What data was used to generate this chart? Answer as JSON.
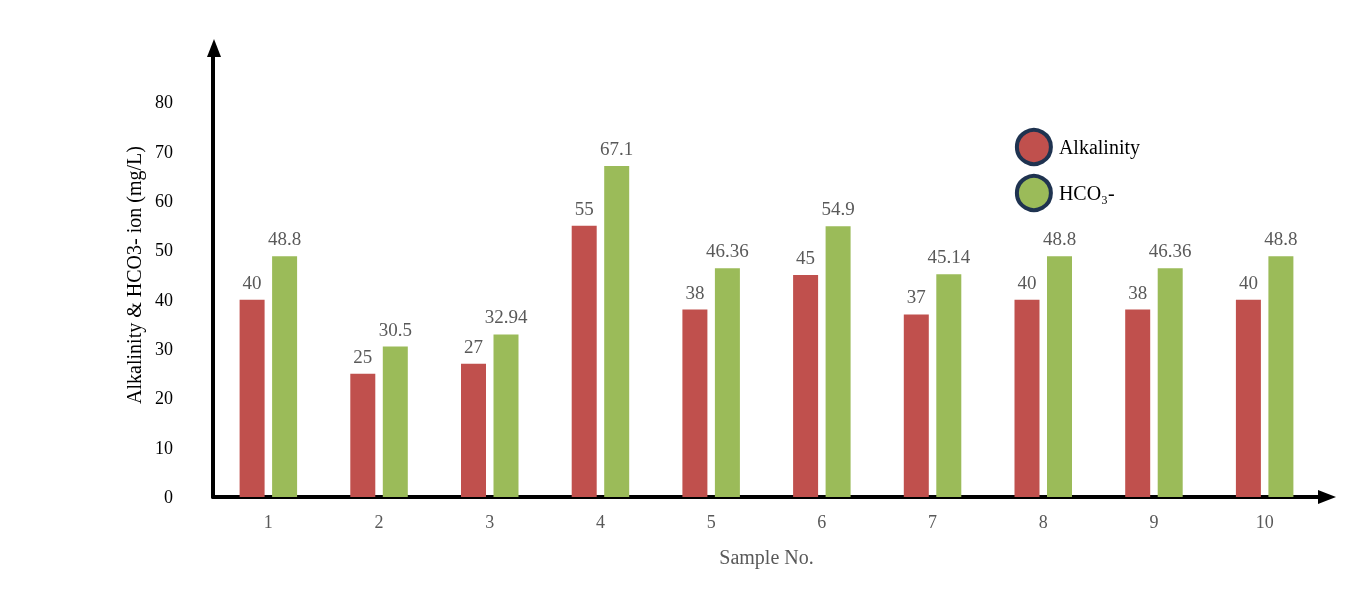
{
  "chart_data": {
    "type": "bar",
    "xlabel": "Sample No.",
    "ylabel": "Alkalinity & HCO3- ion (mg/L)",
    "categories": [
      "1",
      "2",
      "3",
      "4",
      "5",
      "6",
      "7",
      "8",
      "9",
      "10"
    ],
    "series": [
      {
        "name": "Alkalinity",
        "color": "#c0504d",
        "values": [
          40,
          25,
          27,
          55,
          38,
          45,
          37,
          40,
          38,
          40
        ]
      },
      {
        "name": "HCO₃-",
        "color": "#9bbb59",
        "values": [
          48.8,
          30.5,
          32.94,
          67.1,
          46.36,
          54.9,
          45.14,
          48.8,
          46.36,
          48.8
        ]
      }
    ],
    "ylim": [
      0,
      90
    ],
    "yticks": [
      0,
      10,
      20,
      30,
      40,
      50,
      60,
      70,
      80
    ],
    "grid": false,
    "legend": "top right",
    "data_labels": true
  }
}
